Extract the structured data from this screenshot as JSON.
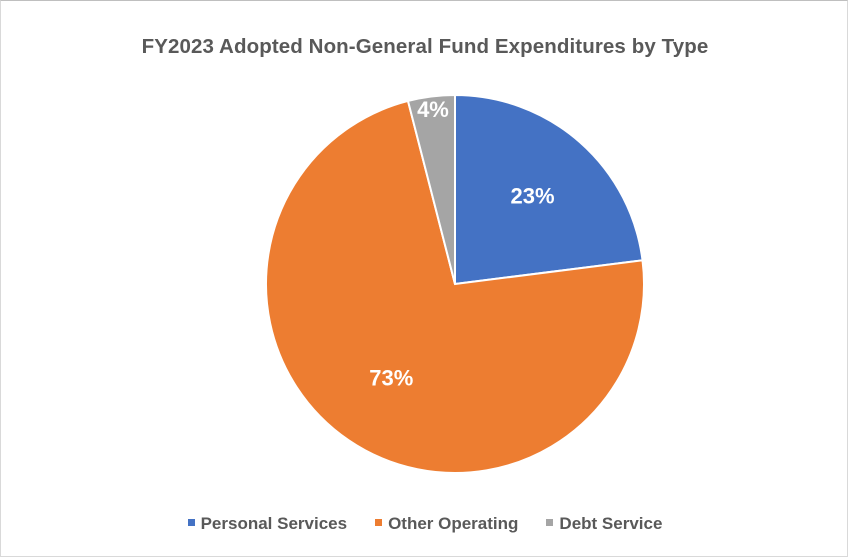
{
  "chart_data": {
    "type": "pie",
    "title": "FY2023 Adopted Non-General Fund Expenditures by Type",
    "categories": [
      "Personal Services",
      "Other Operating",
      "Debt Service"
    ],
    "values": [
      23,
      73,
      4
    ],
    "data_labels": [
      "23%",
      "73%",
      "4%"
    ],
    "colors": [
      "#4472c4",
      "#ed7d31",
      "#a5a5a5"
    ],
    "legend_position": "bottom"
  }
}
